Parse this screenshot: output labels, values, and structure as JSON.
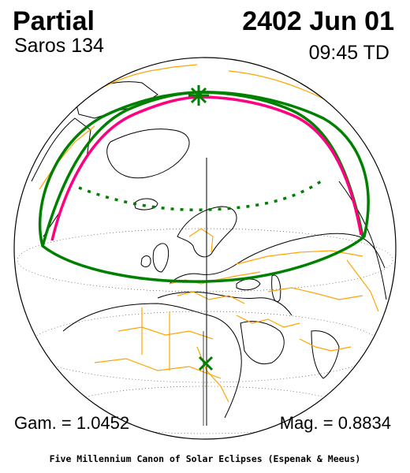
{
  "header": {
    "eclipse_type": "Partial",
    "saros": "Saros 134",
    "date": "2402 Jun 01",
    "time": "09:45 TD"
  },
  "footer": {
    "gamma": "Gam. = 1.0452",
    "magnitude": "Mag. = 0.8834",
    "credit": "Five Millennium Canon of Solar Eclipses (Espenak & Meeus)"
  },
  "colors": {
    "background": "#ffffff",
    "night_shading": "#c0c0c0",
    "coastlines": "#000000",
    "borders": "#ffa500",
    "penumbral_limits": "#008000",
    "maximum_eclipse_line": "#ff0080",
    "greatest_eclipse_marker": "#008000",
    "grid": "#000000"
  },
  "icons": {
    "greatest_eclipse": "asterisk-icon",
    "sub_solar_point": "x-cross-icon"
  }
}
